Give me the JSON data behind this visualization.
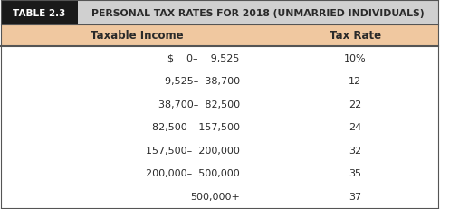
{
  "table_label": "TABLE 2.3",
  "title": "PERSONAL TAX RATES FOR 2018 (UNMARRIED INDIVIDUALS)",
  "col_headers": [
    "Taxable Income",
    "Tax Rate"
  ],
  "rows": [
    [
      "$    0–    9,525",
      "10%"
    ],
    [
      "9,525–  38,700",
      "12"
    ],
    [
      "38,700–  82,500",
      "22"
    ],
    [
      "82,500–  157,500",
      "24"
    ],
    [
      "157,500–  200,000",
      "32"
    ],
    [
      "200,000–  500,000",
      "35"
    ],
    [
      "500,000+",
      "37"
    ]
  ],
  "header_bg": "#f0c8a0",
  "title_bg": "#d0d0d0",
  "table_label_bg": "#1a1a1a",
  "table_label_color": "#ffffff",
  "border_color": "#555555",
  "text_color": "#2a2a2a",
  "fig_bg": "#ffffff"
}
